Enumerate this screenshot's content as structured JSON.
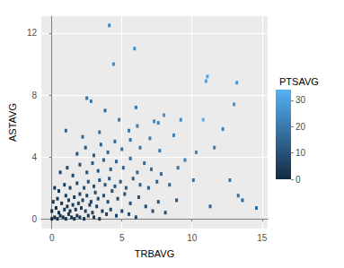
{
  "chart_data": {
    "type": "scatter",
    "x_label": "TRBAVG",
    "y_label": "ASTAVG",
    "marker": "square",
    "grid": true,
    "xlim": [
      -0.75,
      15.4
    ],
    "xticks": [
      0,
      5,
      10,
      15
    ],
    "ylim": [
      -0.63,
      13.1
    ],
    "yticks": [
      0,
      4,
      8,
      12
    ],
    "x": [
      0.0,
      0.2,
      0.4,
      0.6,
      0.8,
      1.0,
      1.2,
      1.4,
      1.6,
      1.8,
      2.0,
      2.3,
      2.6,
      3.0,
      3.4,
      0.0,
      0.3,
      0.5,
      0.9,
      1.1,
      1.3,
      1.5,
      1.7,
      1.9,
      2.1,
      2.4,
      2.7,
      2.9,
      3.2,
      3.6,
      3.9,
      4.2,
      4.6,
      5.0,
      5.5,
      6.0,
      0.1,
      0.4,
      0.7,
      1.0,
      1.2,
      1.6,
      2.0,
      2.2,
      2.5,
      2.8,
      3.1,
      3.3,
      3.7,
      4.0,
      4.3,
      4.7,
      5.2,
      5.6,
      6.2,
      6.7,
      7.2,
      7.6,
      8.1,
      0.2,
      0.5,
      0.9,
      1.3,
      1.8,
      2.3,
      2.6,
      3.0,
      3.4,
      3.8,
      4.1,
      4.5,
      4.9,
      5.3,
      5.8,
      6.3,
      6.9,
      7.5,
      0.6,
      1.1,
      1.5,
      2.0,
      2.5,
      2.9,
      3.3,
      3.7,
      4.2,
      4.6,
      5.1,
      5.6,
      6.1,
      6.6,
      7.1,
      7.8,
      8.4,
      9.0,
      9.5,
      10.1,
      10.3,
      1.8,
      2.4,
      3.0,
      3.5,
      4.0,
      4.5,
      5.0,
      5.6,
      6.3,
      7.0,
      7.7,
      1.0,
      2.2,
      3.4,
      4.8,
      5.5,
      6.1,
      7.3,
      7.6,
      8.0,
      2.5,
      2.8,
      4.4,
      4.1,
      5.9,
      11.1,
      11.0,
      13.2,
      13.0,
      12.2,
      11.6,
      11.3,
      12.7,
      13.3,
      13.6,
      14.6,
      9.2,
      8.7,
      10.8,
      6.0,
      3.8,
      8.9
    ],
    "values": [
      0.0,
      0.1,
      0.0,
      0.2,
      0.1,
      0.0,
      0.3,
      0.1,
      0.0,
      0.2,
      0.1,
      0.0,
      0.2,
      0.1,
      0.0,
      0.5,
      0.7,
      0.4,
      0.6,
      0.8,
      0.5,
      0.9,
      0.6,
      1.0,
      0.7,
      0.5,
      0.9,
      0.4,
      0.8,
      0.5,
      0.3,
      0.6,
      0.2,
      0.5,
      0.3,
      0.1,
      1.1,
      1.3,
      1.0,
      1.5,
      1.2,
      1.4,
      1.6,
      1.2,
      1.5,
      1.1,
      1.7,
      1.3,
      1.5,
      1.1,
      1.8,
      1.3,
      1.6,
      1.0,
      1.4,
      0.8,
      0.5,
      1.1,
      0.4,
      2.0,
      1.8,
      2.2,
      2.0,
      2.3,
      2.0,
      2.4,
      2.1,
      2.5,
      2.2,
      2.6,
      2.1,
      2.4,
      2.0,
      2.6,
      2.2,
      2.0,
      2.4,
      3.0,
      3.3,
      2.8,
      3.5,
      3.0,
      3.6,
      3.1,
      3.8,
      3.2,
      3.7,
      3.3,
      3.9,
      3.0,
      3.6,
      3.2,
      2.9,
      2.2,
      3.3,
      3.8,
      2.5,
      4.3,
      4.2,
      4.6,
      4.1,
      4.8,
      4.3,
      5.0,
      4.5,
      5.1,
      4.6,
      5.2,
      4.4,
      5.7,
      5.3,
      5.6,
      6.4,
      5.7,
      6.0,
      6.3,
      6.2,
      6.7,
      7.8,
      7.6,
      10.0,
      12.5,
      11.0,
      9.2,
      8.9,
      8.8,
      7.4,
      5.8,
      4.6,
      0.8,
      2.5,
      1.5,
      1.2,
      0.7,
      6.4,
      5.4,
      6.4,
      7.2,
      7.0,
      1.2
    ],
    "color_values": [
      0,
      1,
      1,
      2,
      2,
      2,
      3,
      3,
      2,
      3,
      4,
      3,
      4,
      4,
      5,
      1,
      1,
      2,
      3,
      3,
      2,
      4,
      4,
      5,
      4,
      5,
      6,
      5,
      6,
      5,
      6,
      7,
      6,
      7,
      8,
      6,
      2,
      3,
      3,
      4,
      5,
      5,
      6,
      6,
      7,
      6,
      8,
      7,
      8,
      8,
      9,
      8,
      10,
      9,
      10,
      9,
      10,
      11,
      9,
      3,
      3,
      5,
      6,
      7,
      8,
      9,
      9,
      10,
      10,
      11,
      11,
      12,
      12,
      13,
      13,
      13,
      14,
      6,
      7,
      7,
      9,
      10,
      11,
      11,
      13,
      13,
      14,
      14,
      15,
      15,
      16,
      16,
      16,
      15,
      19,
      20,
      18,
      22,
      10,
      12,
      12,
      14,
      15,
      16,
      17,
      18,
      18,
      20,
      19,
      14,
      15,
      17,
      20,
      19,
      21,
      23,
      22,
      26,
      18,
      20,
      24,
      22,
      25,
      31,
      29,
      27,
      26,
      22,
      20,
      14,
      18,
      17,
      15,
      16,
      24,
      21,
      34,
      19,
      16,
      12
    ],
    "colorbar": {
      "title": "PTSAVG",
      "range": [
        0,
        34
      ],
      "ticks": [
        0,
        10,
        20,
        30
      ],
      "colors": [
        "#132B43",
        "#56B1F7"
      ]
    }
  }
}
